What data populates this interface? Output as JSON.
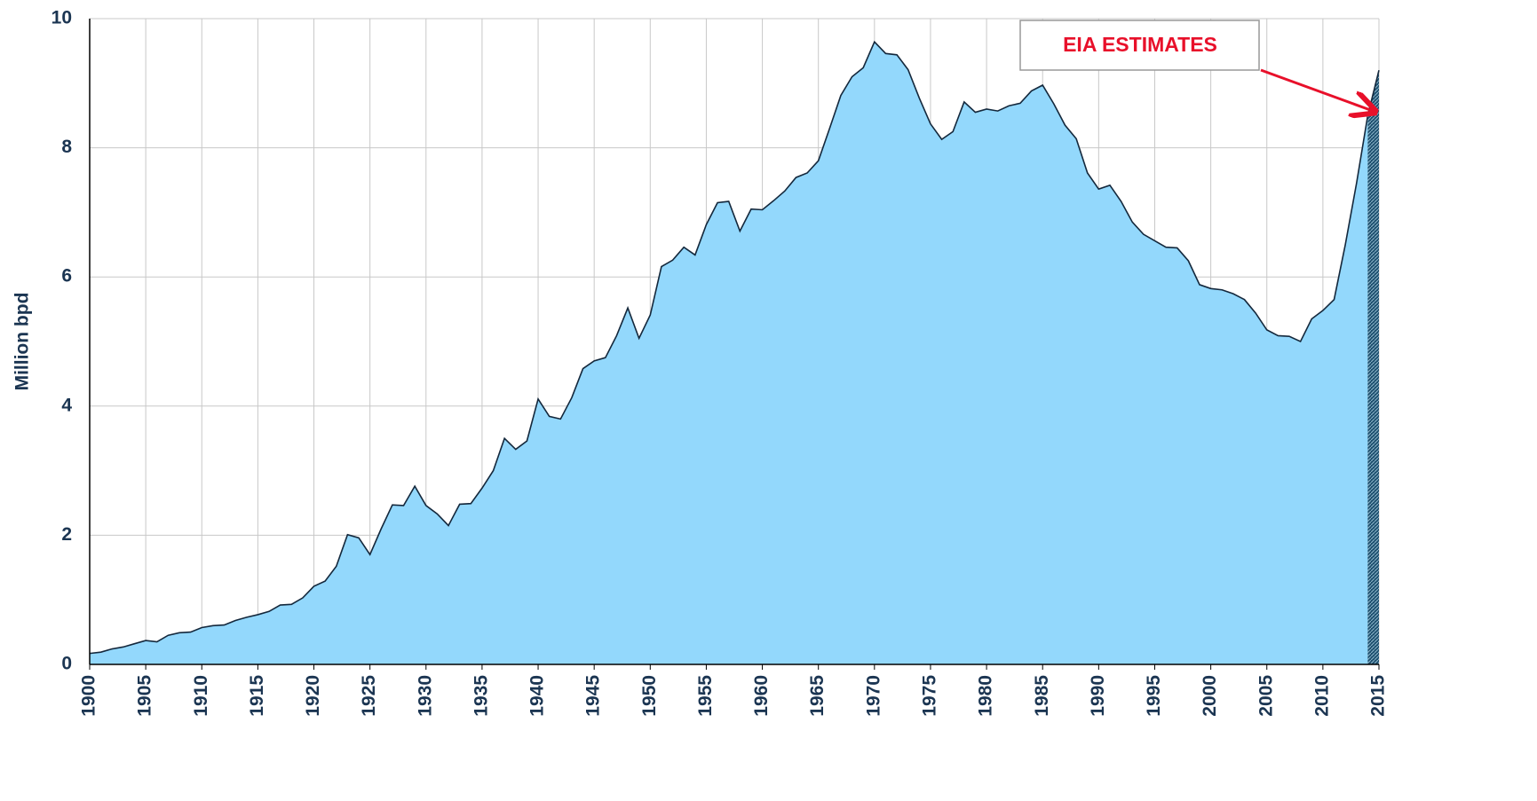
{
  "chart_data": {
    "type": "area",
    "y_label": "Million bpd",
    "annotation": "EIA ESTIMATES",
    "x": [
      1900,
      1901,
      1902,
      1903,
      1904,
      1905,
      1906,
      1907,
      1908,
      1909,
      1910,
      1911,
      1912,
      1913,
      1914,
      1915,
      1916,
      1917,
      1918,
      1919,
      1920,
      1921,
      1922,
      1923,
      1924,
      1925,
      1926,
      1927,
      1928,
      1929,
      1930,
      1931,
      1932,
      1933,
      1934,
      1935,
      1936,
      1937,
      1938,
      1939,
      1940,
      1941,
      1942,
      1943,
      1944,
      1945,
      1946,
      1947,
      1948,
      1949,
      1950,
      1951,
      1952,
      1953,
      1954,
      1955,
      1956,
      1957,
      1958,
      1959,
      1960,
      1961,
      1962,
      1963,
      1964,
      1965,
      1966,
      1967,
      1968,
      1969,
      1970,
      1971,
      1972,
      1973,
      1974,
      1975,
      1976,
      1977,
      1978,
      1979,
      1980,
      1981,
      1982,
      1983,
      1984,
      1985,
      1986,
      1987,
      1988,
      1989,
      1990,
      1991,
      1992,
      1993,
      1994,
      1995,
      1996,
      1997,
      1998,
      1999,
      2000,
      2001,
      2002,
      2003,
      2004,
      2005,
      2006,
      2007,
      2008,
      2009,
      2010,
      2011,
      2012,
      2013,
      2014,
      2015
    ],
    "series": [
      {
        "color": "#93d8fc",
        "values": [
          0.17,
          0.19,
          0.24,
          0.27,
          0.32,
          0.37,
          0.35,
          0.45,
          0.49,
          0.5,
          0.57,
          0.6,
          0.61,
          0.68,
          0.73,
          0.77,
          0.82,
          0.92,
          0.93,
          1.03,
          1.21,
          1.29,
          1.52,
          2.01,
          1.96,
          1.7,
          2.1,
          2.47,
          2.46,
          2.76,
          2.46,
          2.33,
          2.15,
          2.48,
          2.49,
          2.73,
          3.0,
          3.5,
          3.33,
          3.46,
          4.11,
          3.84,
          3.8,
          4.13,
          4.58,
          4.7,
          4.75,
          5.09,
          5.52,
          5.05,
          5.41,
          6.16,
          6.26,
          6.46,
          6.34,
          6.81,
          7.15,
          7.17,
          6.71,
          7.05,
          7.04,
          7.18,
          7.33,
          7.54,
          7.61,
          7.8,
          8.3,
          8.81,
          9.1,
          9.24,
          9.64,
          9.46,
          9.44,
          9.21,
          8.77,
          8.37,
          8.13,
          8.25,
          8.71,
          8.55,
          8.6,
          8.57,
          8.65,
          8.69,
          8.88,
          8.97,
          8.68,
          8.35,
          8.14,
          7.61,
          7.36,
          7.42,
          7.17,
          6.85,
          6.66,
          6.56,
          6.46,
          6.45,
          6.25,
          5.88,
          5.82,
          5.8,
          5.74,
          5.65,
          5.44,
          5.18,
          5.09,
          5.08,
          5.0,
          5.35,
          5.48,
          5.65,
          6.5,
          7.45,
          8.5,
          null
        ]
      },
      {
        "color": "#1d4f6e",
        "values": [
          null,
          null,
          null,
          null,
          null,
          null,
          null,
          null,
          null,
          null,
          null,
          null,
          null,
          null,
          null,
          null,
          null,
          null,
          null,
          null,
          null,
          null,
          null,
          null,
          null,
          null,
          null,
          null,
          null,
          null,
          null,
          null,
          null,
          null,
          null,
          null,
          null,
          null,
          null,
          null,
          null,
          null,
          null,
          null,
          null,
          null,
          null,
          null,
          null,
          null,
          null,
          null,
          null,
          null,
          null,
          null,
          null,
          null,
          null,
          null,
          null,
          null,
          null,
          null,
          null,
          null,
          null,
          null,
          null,
          null,
          null,
          null,
          null,
          null,
          null,
          null,
          null,
          null,
          null,
          null,
          null,
          null,
          null,
          null,
          null,
          null,
          null,
          null,
          null,
          null,
          null,
          null,
          null,
          null,
          null,
          null,
          null,
          null,
          null,
          null,
          null,
          null,
          null,
          null,
          null,
          null,
          null,
          null,
          null,
          null,
          null,
          null,
          null,
          null,
          8.5,
          9.2
        ]
      }
    ],
    "xlim": [
      1900,
      2015
    ],
    "xticks": [
      1900,
      1905,
      1910,
      1915,
      1920,
      1925,
      1930,
      1935,
      1940,
      1945,
      1950,
      1955,
      1960,
      1965,
      1970,
      1975,
      1980,
      1985,
      1990,
      1995,
      2000,
      2005,
      2010,
      2015
    ],
    "ylim": [
      0,
      10
    ],
    "yticks": [
      0,
      2,
      4,
      6,
      8,
      10
    ],
    "grid": true
  }
}
